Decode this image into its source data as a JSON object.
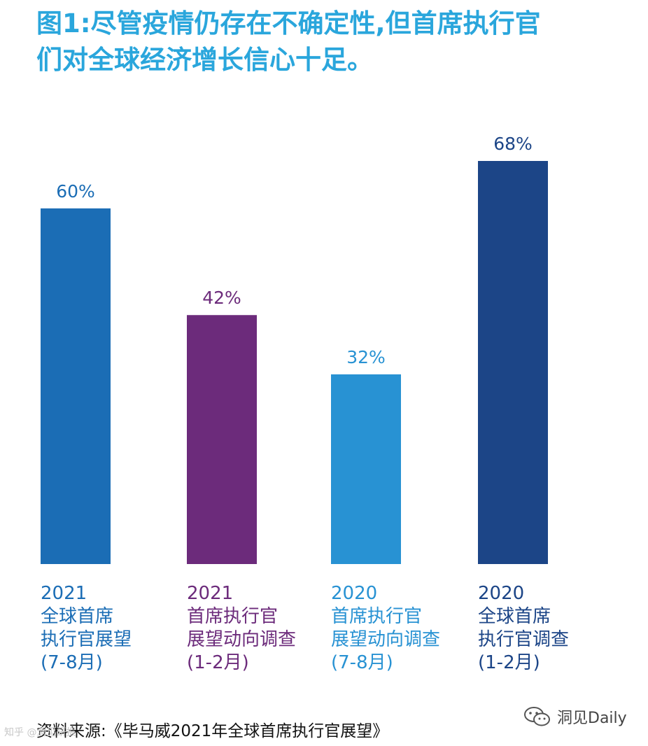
{
  "title": {
    "line1": "图1:尽管疫情仍存在不确定性,但首席执行官",
    "line2": "们对全球经济增长信心十足。"
  },
  "chart_data": {
    "type": "bar",
    "title": "图1:尽管疫情仍存在不确定性,但首席执行官们对全球经济增长信心十足。",
    "categories": [
      "2021 全球首席执行官展望(7-8月)",
      "2021 首席执行官展望动向调查(1-2月)",
      "2020 首席执行官展望动向调查(7-8月)",
      "2020 全球首席执行官调查(1-2月)"
    ],
    "values": [
      60,
      42,
      32,
      68
    ],
    "value_labels": [
      "60%",
      "42%",
      "32%",
      "68%"
    ],
    "colors": [
      "#1b6db5",
      "#6c2b7b",
      "#2892d3",
      "#1c4587"
    ],
    "category_lines": [
      [
        "2021",
        "全球首席",
        "执行官展望",
        "(7-8月)"
      ],
      [
        "2021",
        "首席执行官",
        "展望动向调查",
        "(1-2月)"
      ],
      [
        "2020",
        "首席执行官",
        "展望动向调查",
        "(7-8月)"
      ],
      [
        "2020",
        "全球首席",
        "执行官调查",
        "(1-2月)"
      ]
    ],
    "ylim": [
      0,
      100
    ],
    "xlabel": "",
    "ylabel": "",
    "grid": false
  },
  "source": "资料来源:《毕马威2021年全球首席执行官展望》",
  "watermark": {
    "icon": "wechat-icon",
    "text": "洞见Daily",
    "left_text": "知乎 @洞见研报"
  }
}
